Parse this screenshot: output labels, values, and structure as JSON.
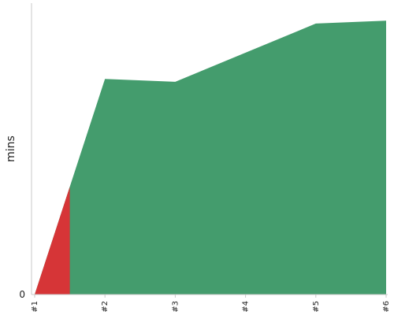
{
  "chart_data": {
    "type": "area",
    "title": "",
    "xlabel": "",
    "ylabel": "mins",
    "categories": [
      "#1",
      "#2",
      "#3",
      "#4",
      "#5",
      "#6"
    ],
    "y_tick_labels": [
      "0"
    ],
    "ylim": [
      0,
      100
    ],
    "grid": false,
    "colors": {
      "good": "#449c6d",
      "bad": "#d63537"
    },
    "series": [
      {
        "color": "#449c6d",
        "values": [
          0,
          74,
          73,
          83,
          93,
          94
        ]
      },
      {
        "color": "#d63537",
        "segment": {
          "x": [
            0,
            0.5
          ],
          "values": [
            0,
            37
          ]
        }
      }
    ]
  }
}
